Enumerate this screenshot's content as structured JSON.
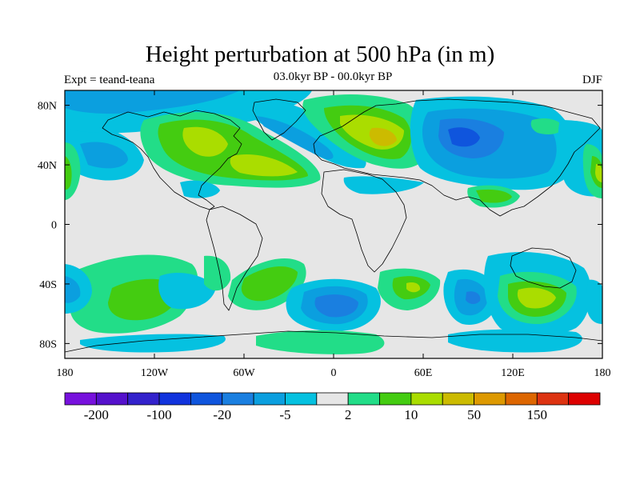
{
  "title": "Height perturbation at 500 hPa (in m)",
  "experiment_label": "Expt = teand-teana",
  "period_label": "03.0kyr BP - 00.0kyr BP",
  "season_label": "DJF",
  "lon_ticks": [
    "180",
    "120W",
    "60W",
    "0",
    "60E",
    "120E",
    "180"
  ],
  "lat_ticks": [
    "80N",
    "40N",
    "0",
    "40S",
    "80S"
  ],
  "colorbar": {
    "colors": [
      "#7711dd",
      "#5511cc",
      "#3322cc",
      "#1133dd",
      "#0f55dd",
      "#1a7fe0",
      "#0b9fdf",
      "#05c1e0",
      "#e6e6e6",
      "#22dd88",
      "#44cc11",
      "#aadd00",
      "#ccbb00",
      "#dd9900",
      "#dd6600",
      "#dd3311",
      "#dd0000"
    ],
    "labels": [
      "-200",
      "-100",
      "-20",
      "-5",
      "2",
      "10",
      "50",
      "150"
    ]
  },
  "field": {
    "contour_levels": [
      "-200",
      "-150",
      "-100",
      "-50",
      "-20",
      "-10",
      "-5",
      "-2",
      "2",
      "5",
      "10",
      "20",
      "50",
      "100",
      "150",
      "200"
    ],
    "features": [
      {
        "lon": -90,
        "lat": 68,
        "value": 40,
        "sign": "positive"
      },
      {
        "lon": -45,
        "lat": 44,
        "value": 45,
        "sign": "positive"
      },
      {
        "lon": 25,
        "lat": 62,
        "value": 35,
        "sign": "positive"
      },
      {
        "lon": 35,
        "lat": 55,
        "value": 50,
        "sign": "positive"
      },
      {
        "lon": 95,
        "lat": 60,
        "value": -25,
        "sign": "negative"
      },
      {
        "lon": -35,
        "lat": 72,
        "value": -18,
        "sign": "negative"
      },
      {
        "lon": 155,
        "lat": 40,
        "value": -12,
        "sign": "negative"
      },
      {
        "lon": -140,
        "lat": -52,
        "value": 28,
        "sign": "positive"
      },
      {
        "lon": 5,
        "lat": -52,
        "value": -25,
        "sign": "negative"
      },
      {
        "lon": 55,
        "lat": -42,
        "value": 22,
        "sign": "positive"
      },
      {
        "lon": 140,
        "lat": -50,
        "value": 28,
        "sign": "positive"
      },
      {
        "lon": -170,
        "lat": -40,
        "value": -15,
        "sign": "negative"
      }
    ]
  }
}
